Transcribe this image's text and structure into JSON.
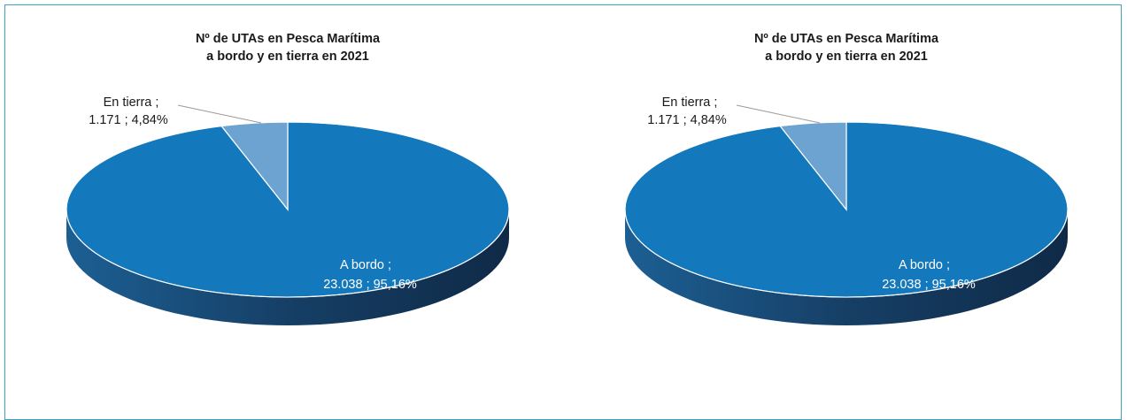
{
  "charts": [
    {
      "chart_data": {
        "type": "pie",
        "title_lines": [
          "Nº de UTAs en Pesca Marítima",
          "a bordo y en tierra en 2021"
        ],
        "slices": [
          {
            "label_lines": [
              "A bordo ;",
              "23.038  ;  95,16%"
            ],
            "value": 23038,
            "percent": 95.16,
            "color": "#1479bc"
          },
          {
            "label_lines": [
              "En tierra ;",
              "1.171 ; 4,84%"
            ],
            "value": 1171,
            "percent": 4.84,
            "color": "#6da3d0"
          }
        ]
      }
    },
    {
      "chart_data": {
        "type": "pie",
        "title_lines": [
          "Nº de UTAs en Pesca Marítima",
          "a bordo y en tierra en 2021"
        ],
        "slices": [
          {
            "label_lines": [
              "A bordo ;",
              "23.038  ;  95,16%"
            ],
            "value": 23038,
            "percent": 95.16,
            "color": "#1479bc"
          },
          {
            "label_lines": [
              "En tierra ;",
              "1.171 ; 4,84%"
            ],
            "value": 1171,
            "percent": 4.84,
            "color": "#6da3d0"
          }
        ]
      }
    }
  ]
}
